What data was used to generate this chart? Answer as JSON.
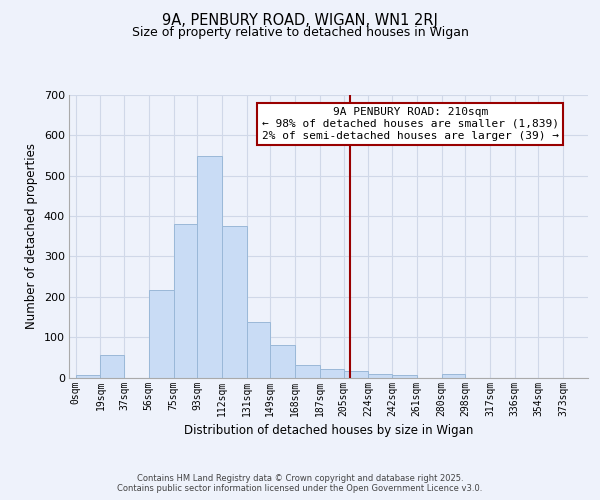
{
  "title": "9A, PENBURY ROAD, WIGAN, WN1 2RJ",
  "subtitle": "Size of property relative to detached houses in Wigan",
  "xlabel": "Distribution of detached houses by size in Wigan",
  "ylabel": "Number of detached properties",
  "bar_left_edges": [
    0,
    19,
    37,
    56,
    75,
    93,
    112,
    131,
    149,
    168,
    187,
    205,
    224,
    242,
    261,
    280,
    298,
    317,
    336,
    354
  ],
  "bar_widths": [
    19,
    18,
    19,
    19,
    18,
    19,
    19,
    18,
    19,
    19,
    18,
    19,
    18,
    19,
    19,
    18,
    19,
    19,
    18,
    19
  ],
  "bar_heights": [
    5,
    55,
    0,
    217,
    380,
    550,
    375,
    138,
    80,
    30,
    20,
    15,
    8,
    7,
    0,
    8,
    0,
    0,
    0,
    0
  ],
  "bar_color": "#c9dcf5",
  "bar_edge_color": "#9ab8d8",
  "grid_color": "#d0d8e8",
  "background_color": "#eef2fb",
  "vline_x": 210,
  "vline_color": "#990000",
  "annotation_title": "9A PENBURY ROAD: 210sqm",
  "annotation_line1": "← 98% of detached houses are smaller (1,839)",
  "annotation_line2": "2% of semi-detached houses are larger (39) →",
  "annotation_box_facecolor": "#ffffff",
  "annotation_box_edgecolor": "#990000",
  "x_tick_labels": [
    "0sqm",
    "19sqm",
    "37sqm",
    "56sqm",
    "75sqm",
    "93sqm",
    "112sqm",
    "131sqm",
    "149sqm",
    "168sqm",
    "187sqm",
    "205sqm",
    "224sqm",
    "242sqm",
    "261sqm",
    "280sqm",
    "298sqm",
    "317sqm",
    "336sqm",
    "354sqm",
    "373sqm"
  ],
  "x_tick_positions": [
    0,
    19,
    37,
    56,
    75,
    93,
    112,
    131,
    149,
    168,
    187,
    205,
    224,
    242,
    261,
    280,
    298,
    317,
    336,
    354,
    373
  ],
  "ylim": [
    0,
    700
  ],
  "xlim": [
    -5,
    392
  ],
  "yticks": [
    0,
    100,
    200,
    300,
    400,
    500,
    600,
    700
  ],
  "footer1": "Contains HM Land Registry data © Crown copyright and database right 2025.",
  "footer2": "Contains public sector information licensed under the Open Government Licence v3.0."
}
